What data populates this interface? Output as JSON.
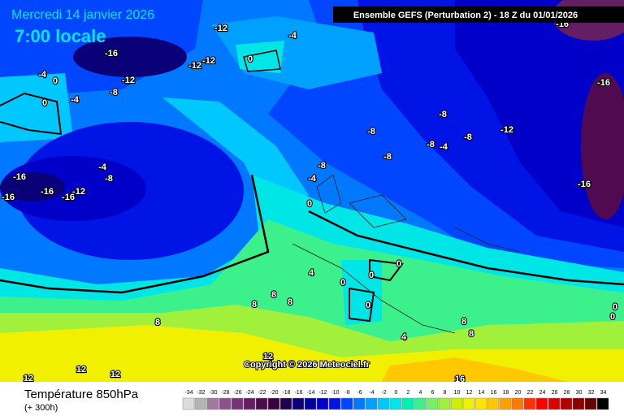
{
  "header": {
    "date": "Mercredi 14 janvier 2026",
    "time": "7:00 locale",
    "run": "Ensemble GEFS  (Perturbation 2)  -  18 Z du 01/01/2026"
  },
  "copyright": "Copyright © 2026 Meteociel.fr",
  "footer": {
    "title": "Température 850hPa",
    "lead": "(+ 300h)"
  },
  "legend": {
    "values": [
      -34,
      -32,
      -30,
      -28,
      -26,
      -24,
      -22,
      -20,
      -18,
      -16,
      -14,
      -12,
      -10,
      -8,
      -6,
      -4,
      -2,
      0,
      2,
      4,
      6,
      8,
      10,
      12,
      14,
      16,
      18,
      20,
      22,
      24,
      26,
      28,
      30,
      32,
      34
    ],
    "colors": [
      "#dcdcdc",
      "#b4b4b4",
      "#a078a0",
      "#8c508c",
      "#783278",
      "#641e64",
      "#500a50",
      "#3c003c",
      "#1e0050",
      "#0a0078",
      "#0000a0",
      "#0000c8",
      "#0014e6",
      "#0046ff",
      "#0078ff",
      "#00a0ff",
      "#00c8ff",
      "#00e6e6",
      "#00f0b4",
      "#3cf08c",
      "#78f064",
      "#a0f03c",
      "#c8f000",
      "#f0f000",
      "#ffe600",
      "#ffc800",
      "#ffa000",
      "#ff7800",
      "#ff3200",
      "#ff0000",
      "#dc0000",
      "#b40000",
      "#8c0000",
      "#640000",
      "#000000"
    ]
  },
  "contour_labels": [
    -12,
    -4,
    0,
    -16,
    -12,
    -12,
    -12,
    -8,
    -4,
    0,
    -4,
    0,
    -4,
    -8,
    -16,
    -16,
    -12,
    -16,
    -16,
    -8,
    -8,
    -8,
    -8,
    -4,
    -8,
    -12,
    -16,
    -16,
    -16,
    -8,
    -4,
    0,
    0,
    0,
    0,
    0,
    4,
    8,
    8,
    8,
    8,
    8,
    8,
    4,
    12,
    12,
    12,
    12,
    16,
    0,
    0
  ]
}
